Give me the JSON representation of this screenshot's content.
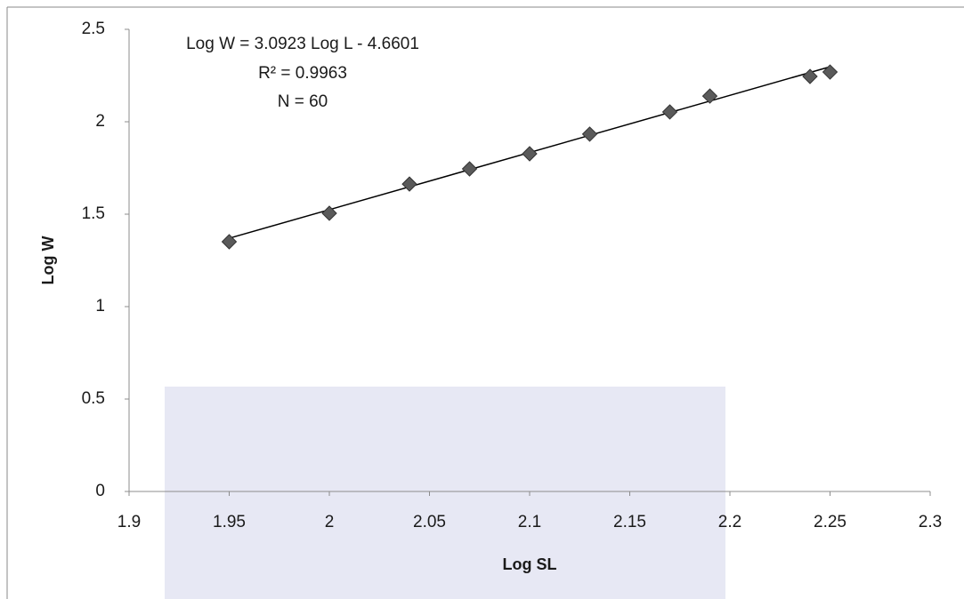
{
  "chart_data": {
    "type": "scatter",
    "annotations": [
      "Log W = 3.0923 Log L - 4.6601",
      "R² = 0.9963",
      "N = 60"
    ],
    "x_label": "Log SL",
    "y_label": "Log W",
    "series": [
      {
        "name": "Log W",
        "color": "#5a5a5a",
        "x": [
          1.95,
          2.0,
          2.04,
          2.07,
          2.1,
          2.13,
          2.17,
          2.19,
          2.24,
          2.25
        ],
        "values": [
          1.351,
          1.505,
          1.663,
          1.745,
          1.827,
          1.933,
          2.053,
          2.139,
          2.245,
          2.269
        ]
      }
    ],
    "trendline": {
      "slope": 3.0923,
      "intercept": -4.6601,
      "color": "#000000"
    },
    "xlim": [
      1.9,
      2.3
    ],
    "xticks": [
      1.9,
      1.95,
      2,
      2.05,
      2.1,
      2.15,
      2.2,
      2.25,
      2.3
    ],
    "ylim": [
      0,
      2.5
    ],
    "yticks": [
      0,
      0.5,
      1,
      1.5,
      2,
      2.5
    ],
    "grid": false
  }
}
